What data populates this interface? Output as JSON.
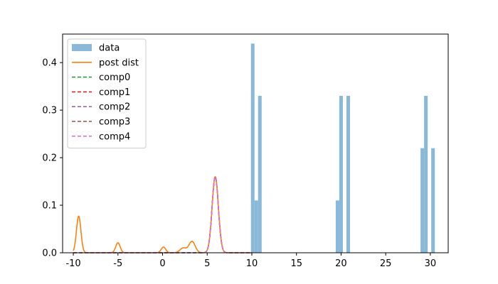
{
  "chart_data": {
    "type": "bar",
    "title": "",
    "xlabel": "",
    "ylabel": "",
    "xlim": [
      -11.2,
      32.0
    ],
    "ylim": [
      0,
      0.46
    ],
    "x_ticks": [
      -10,
      -5,
      0,
      5,
      10,
      15,
      20,
      25,
      30
    ],
    "y_ticks": [
      0.0,
      0.1,
      0.2,
      0.3,
      0.4
    ],
    "grid": false,
    "legend_position": "top-left",
    "histogram": {
      "name": "data",
      "color": "#8ab8d8",
      "bins": [
        {
          "x0": 9.9,
          "x1": 10.3,
          "value": 0.44
        },
        {
          "x0": 10.3,
          "x1": 10.7,
          "value": 0.11
        },
        {
          "x0": 10.7,
          "x1": 11.1,
          "value": 0.33
        },
        {
          "x0": 19.4,
          "x1": 19.8,
          "value": 0.11
        },
        {
          "x0": 19.8,
          "x1": 20.2,
          "value": 0.33
        },
        {
          "x0": 20.6,
          "x1": 21.0,
          "value": 0.33
        },
        {
          "x0": 28.9,
          "x1": 29.3,
          "value": 0.22
        },
        {
          "x0": 29.3,
          "x1": 29.7,
          "value": 0.33
        },
        {
          "x0": 30.1,
          "x1": 30.5,
          "value": 0.22
        }
      ]
    },
    "series": [
      {
        "name": "post dist",
        "color": "#ff7f0e",
        "style": "solid",
        "peaks": [
          {
            "mu": -9.4,
            "sigma": 0.25,
            "amp": 0.077
          },
          {
            "mu": -5.0,
            "sigma": 0.25,
            "amp": 0.021
          },
          {
            "mu": 0.1,
            "sigma": 0.25,
            "amp": 0.012
          },
          {
            "mu": 2.3,
            "sigma": 0.35,
            "amp": 0.01
          },
          {
            "mu": 3.3,
            "sigma": 0.35,
            "amp": 0.024
          },
          {
            "mu": 5.9,
            "sigma": 0.35,
            "amp": 0.16
          }
        ]
      },
      {
        "name": "comp0",
        "color": "#2ca02c",
        "style": "dashed",
        "peaks": [
          {
            "mu": 5.9,
            "sigma": 0.35,
            "amp": 0.16
          }
        ]
      },
      {
        "name": "comp1",
        "color": "#d62728",
        "style": "dashed",
        "peaks": [
          {
            "mu": 5.9,
            "sigma": 0.35,
            "amp": 0.16
          }
        ]
      },
      {
        "name": "comp2",
        "color": "#9467bd",
        "style": "dashed",
        "peaks": [
          {
            "mu": 5.9,
            "sigma": 0.35,
            "amp": 0.16
          }
        ]
      },
      {
        "name": "comp3",
        "color": "#8c564b",
        "style": "dashed",
        "peaks": [
          {
            "mu": 5.9,
            "sigma": 0.35,
            "amp": 0.16
          }
        ]
      },
      {
        "name": "comp4",
        "color": "#e377c2",
        "style": "dashed",
        "peaks": [
          {
            "mu": 5.9,
            "sigma": 0.35,
            "amp": 0.16
          }
        ]
      }
    ]
  }
}
